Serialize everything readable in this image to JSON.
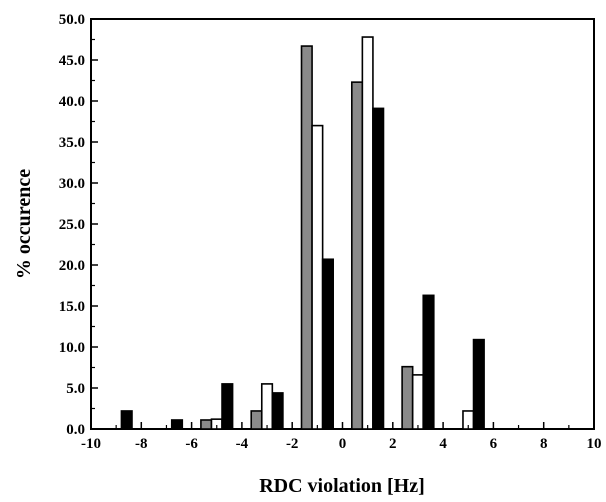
{
  "chart_data": {
    "type": "bar",
    "title": "",
    "xlabel": "RDC violation [Hz]",
    "ylabel": "% occurence",
    "xlim": [
      -10,
      10
    ],
    "ylim": [
      0,
      50
    ],
    "grid": false,
    "x_ticks": [
      "-10",
      "-8",
      "-6",
      "-4",
      "-2",
      "0",
      "2",
      "4",
      "6",
      "8",
      "10"
    ],
    "y_ticks": [
      "0.0",
      "5.0",
      "10.0",
      "15.0",
      "20.0",
      "25.0",
      "30.0",
      "35.0",
      "40.0",
      "45.0",
      "50.0"
    ],
    "bin_centers": [
      -9,
      -7,
      -5,
      -3,
      -1,
      1,
      3,
      5,
      7,
      9
    ],
    "series": [
      {
        "color": "#8a8a8a",
        "values": [
          0.0,
          0.0,
          1.1,
          2.2,
          46.7,
          42.3,
          7.6,
          0.0,
          0.0,
          0.0
        ]
      },
      {
        "color": "#ffffff",
        "values": [
          0.0,
          0.0,
          1.2,
          5.5,
          37.0,
          47.8,
          6.6,
          2.2,
          0.0,
          0.0
        ]
      },
      {
        "color": "#000000",
        "values": [
          2.2,
          1.1,
          5.5,
          4.4,
          20.7,
          39.1,
          16.3,
          10.9,
          0.0,
          0.0
        ]
      }
    ]
  }
}
